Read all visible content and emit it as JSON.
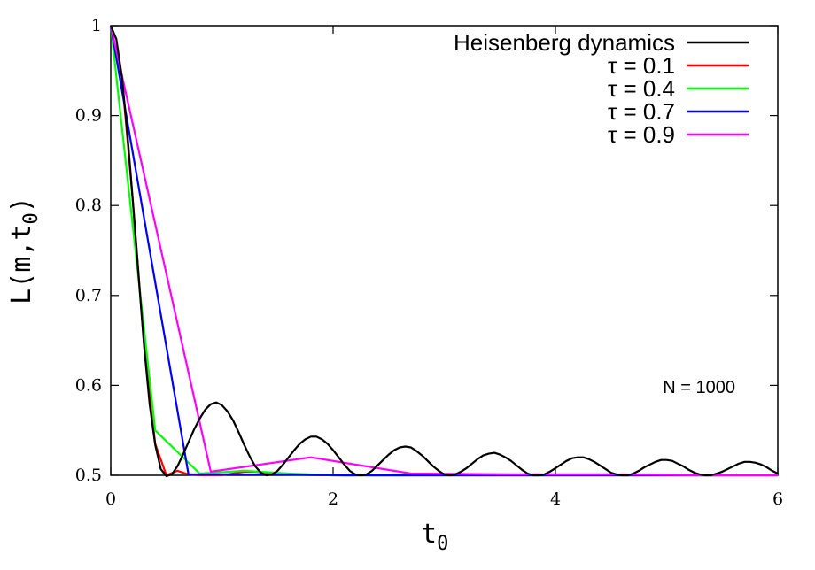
{
  "chart_data": {
    "type": "line",
    "xlabel": "t",
    "xlabel_sub": "0",
    "ylabel": "L(m,t",
    "ylabel_sub": "0",
    "ylabel_close": ")",
    "xlim": [
      0,
      6
    ],
    "ylim": [
      0.5,
      1.0
    ],
    "x_ticks": [
      "0",
      "2",
      "4",
      "6"
    ],
    "y_ticks": [
      "0.5",
      "0.6",
      "0.7",
      "0.8",
      "0.9",
      "1"
    ],
    "legend_position": "top-right",
    "annotation": "N = 1000",
    "series": [
      {
        "name": "Heisenberg dynamics",
        "color": "#000000",
        "x": [
          0,
          0.05,
          0.1,
          0.15,
          0.2,
          0.25,
          0.3,
          0.35,
          0.4,
          0.45,
          0.5,
          0.55,
          0.6,
          0.65,
          0.7,
          0.75,
          0.8,
          0.85,
          0.9,
          0.95,
          1.0,
          1.05,
          1.1,
          1.15,
          1.2,
          1.25,
          1.3,
          1.35,
          1.4,
          1.45,
          1.5,
          1.55,
          1.6,
          1.65,
          1.7,
          1.75,
          1.8,
          1.85,
          1.9,
          1.95,
          2.0,
          2.05,
          2.1,
          2.15,
          2.2,
          2.25,
          2.3,
          2.35,
          2.4,
          2.45,
          2.5,
          2.55,
          2.6,
          2.65,
          2.7,
          2.75,
          2.8,
          2.85,
          2.9,
          2.95,
          3.0,
          3.05,
          3.1,
          3.15,
          3.2,
          3.25,
          3.3,
          3.35,
          3.4,
          3.45,
          3.5,
          3.55,
          3.6,
          3.65,
          3.7,
          3.75,
          3.8,
          3.85,
          3.9,
          3.95,
          4.0,
          4.05,
          4.1,
          4.15,
          4.2,
          4.25,
          4.3,
          4.35,
          4.4,
          4.45,
          4.5,
          4.55,
          4.6,
          4.65,
          4.7,
          4.75,
          4.8,
          4.85,
          4.9,
          4.95,
          5.0,
          5.05,
          5.1,
          5.15,
          5.2,
          5.25,
          5.3,
          5.35,
          5.4,
          5.45,
          5.5,
          5.55,
          5.6,
          5.65,
          5.7,
          5.75,
          5.8,
          5.85,
          5.9,
          5.95,
          6.0
        ],
        "y": [
          1.0,
          0.985,
          0.943,
          0.88,
          0.803,
          0.722,
          0.643,
          0.579,
          0.534,
          0.507,
          0.499,
          0.501,
          0.51,
          0.523,
          0.537,
          0.551,
          0.563,
          0.573,
          0.579,
          0.581,
          0.578,
          0.571,
          0.561,
          0.548,
          0.534,
          0.521,
          0.51,
          0.503,
          0.5,
          0.501,
          0.505,
          0.512,
          0.52,
          0.528,
          0.535,
          0.54,
          0.543,
          0.543,
          0.54,
          0.535,
          0.528,
          0.52,
          0.512,
          0.505,
          0.501,
          0.5,
          0.501,
          0.505,
          0.511,
          0.517,
          0.523,
          0.528,
          0.531,
          0.532,
          0.531,
          0.527,
          0.522,
          0.516,
          0.51,
          0.505,
          0.501,
          0.5,
          0.501,
          0.504,
          0.508,
          0.513,
          0.518,
          0.522,
          0.524,
          0.525,
          0.523,
          0.52,
          0.516,
          0.511,
          0.506,
          0.502,
          0.5,
          0.5,
          0.501,
          0.504,
          0.508,
          0.512,
          0.516,
          0.519,
          0.52,
          0.52,
          0.518,
          0.515,
          0.511,
          0.507,
          0.503,
          0.501,
          0.5,
          0.5,
          0.502,
          0.505,
          0.509,
          0.512,
          0.515,
          0.517,
          0.517,
          0.516,
          0.513,
          0.51,
          0.506,
          0.503,
          0.501,
          0.5,
          0.5,
          0.502,
          0.504,
          0.507,
          0.51,
          0.513,
          0.515,
          0.515,
          0.514,
          0.512,
          0.509,
          0.505,
          0.502
        ]
      },
      {
        "name": "τ = 0.1",
        "color": "#ff0000",
        "x": [
          0,
          0.1,
          0.2,
          0.3,
          0.4,
          0.5,
          0.6,
          0.7,
          0.8,
          0.9,
          1.0,
          1.1,
          1.2,
          1.3,
          1.4,
          1.6,
          2.0,
          3.0,
          4.0,
          5.0,
          6.0
        ],
        "y": [
          1.0,
          0.943,
          0.803,
          0.645,
          0.535,
          0.5,
          0.505,
          0.501,
          0.5,
          0.5,
          0.5,
          0.502,
          0.504,
          0.504,
          0.503,
          0.501,
          0.5,
          0.5,
          0.5,
          0.5,
          0.5
        ]
      },
      {
        "name": "τ = 0.4",
        "color": "#00ff00",
        "x": [
          0,
          0.4,
          0.8,
          1.2,
          1.6,
          2.0,
          2.4,
          2.8,
          3.2,
          3.6,
          4.0,
          4.4,
          4.8,
          5.2,
          5.6,
          6.0
        ],
        "y": [
          1.0,
          0.55,
          0.502,
          0.505,
          0.502,
          0.5,
          0.5,
          0.5,
          0.5,
          0.5,
          0.5,
          0.5,
          0.5,
          0.5,
          0.5,
          0.5
        ]
      },
      {
        "name": "τ = 0.7",
        "color": "#0000ff",
        "x": [
          0,
          0.7,
          1.4,
          2.1,
          2.8,
          3.5,
          4.2,
          4.9,
          5.6,
          6.0
        ],
        "y": [
          1.0,
          0.501,
          0.501,
          0.5,
          0.5,
          0.5,
          0.5,
          0.5,
          0.5,
          0.5
        ]
      },
      {
        "name": "τ = 0.9",
        "color": "#ff00ff",
        "x": [
          0,
          0.9,
          1.8,
          2.7,
          3.6,
          4.5,
          5.4,
          6.0
        ],
        "y": [
          1.0,
          0.504,
          0.52,
          0.502,
          0.501,
          0.501,
          0.5,
          0.5
        ]
      }
    ]
  }
}
